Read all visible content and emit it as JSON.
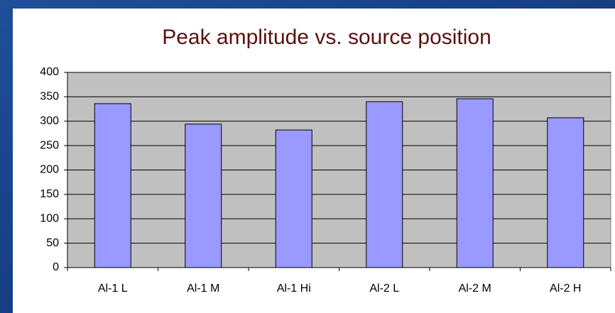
{
  "chart_data": {
    "type": "bar",
    "title": "Peak amplitude vs. source position",
    "categories": [
      "Al-1 L",
      "Al-1 M",
      "Al-1 Hi",
      "Al-2 L",
      "Al-2 M",
      "Al-2 H"
    ],
    "values": [
      336,
      294,
      282,
      340,
      346,
      307
    ],
    "color": "#9999ff",
    "ylim": [
      0,
      400
    ],
    "yticks": [
      0,
      50,
      100,
      150,
      200,
      250,
      300,
      350,
      400
    ],
    "grid": true
  }
}
